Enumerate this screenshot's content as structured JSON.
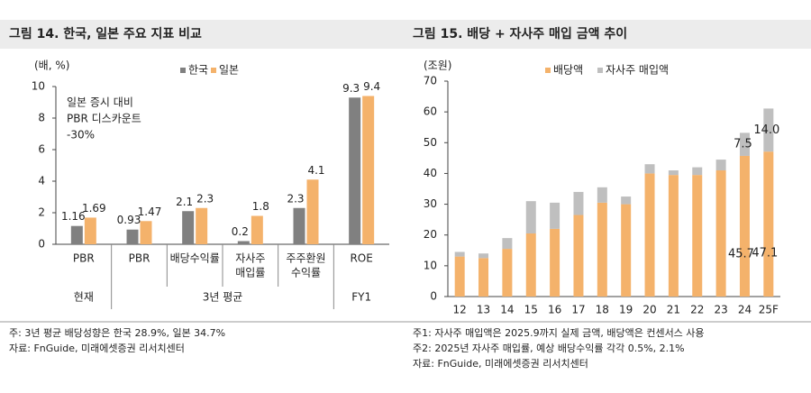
{
  "charts": [
    {
      "chart_data": {
        "type": "grouped_bar",
        "title": "그림 14. 한국, 일본 주요 지표 비교",
        "unit": "(배, %)",
        "annotation": [
          "일본 증시 대비",
          "PBR 디스카운트",
          "-30%"
        ],
        "categories": [
          [
            "PBR"
          ],
          [
            "PBR"
          ],
          [
            "배당수익률"
          ],
          [
            "자사주",
            "매입률"
          ],
          [
            "주주환원",
            "수익률"
          ],
          [
            "ROE"
          ]
        ],
        "groups": [
          {
            "label": "현재",
            "count": 1
          },
          {
            "label": "3년 평균",
            "count": 4
          },
          {
            "label": "FY1",
            "count": 1
          }
        ],
        "series": [
          {
            "name": "한국",
            "color": "#808080",
            "values": [
              1.16,
              0.93,
              2.1,
              0.2,
              2.3,
              9.3
            ]
          },
          {
            "name": "일본",
            "color": "#f4b26b",
            "values": [
              1.69,
              1.47,
              2.3,
              1.8,
              4.1,
              9.4
            ]
          }
        ],
        "ylim": [
          0,
          10
        ],
        "yticks": [
          0,
          2,
          4,
          6,
          8,
          10
        ],
        "notes": [
          "주: 3년 평균 배당성향은 한국 28.9%, 일본 34.7%",
          "자료: FnGuide, 미래에셋증권 리서치센터"
        ]
      }
    },
    {
      "chart_data": {
        "type": "stacked_bar",
        "title": "그림 15. 배당 + 자사주 매입 금액 추이",
        "unit": "(조원)",
        "categories": [
          "12",
          "13",
          "14",
          "15",
          "16",
          "17",
          "18",
          "19",
          "20",
          "21",
          "22",
          "23",
          "24",
          "25F"
        ],
        "series": [
          {
            "name": "배당액",
            "color": "#f4b26b",
            "values": [
              13,
              12.5,
              15.5,
              20.5,
              22,
              26.5,
              30.5,
              30,
              40,
              39.5,
              39.5,
              41,
              45.7,
              47.1
            ],
            "value_labels": [
              null,
              null,
              null,
              null,
              null,
              null,
              null,
              null,
              null,
              null,
              null,
              null,
              "45.7",
              "47.1"
            ]
          },
          {
            "name": "자사주 매입액",
            "color": "#bfbfbf",
            "values": [
              1.5,
              1.5,
              3.5,
              10.5,
              8.5,
              7.5,
              5,
              2.5,
              3,
              1.5,
              2.5,
              3.5,
              7.5,
              14.0
            ],
            "value_labels": [
              null,
              null,
              null,
              null,
              null,
              null,
              null,
              null,
              null,
              null,
              null,
              null,
              "7.5",
              "14.0"
            ]
          }
        ],
        "ylim": [
          0,
          70
        ],
        "yticks": [
          0,
          10,
          20,
          30,
          40,
          50,
          60,
          70
        ],
        "notes": [
          "주1: 자사주 매입액은 2025.9까지 실제 금액, 배당액은 컨센서스 사용",
          "주2: 2025년 자사주 매입률, 예상 배당수익률 각각 0.5%, 2.1%",
          "자료: FnGuide, 미래에셋증권 리서치센터"
        ]
      }
    }
  ]
}
